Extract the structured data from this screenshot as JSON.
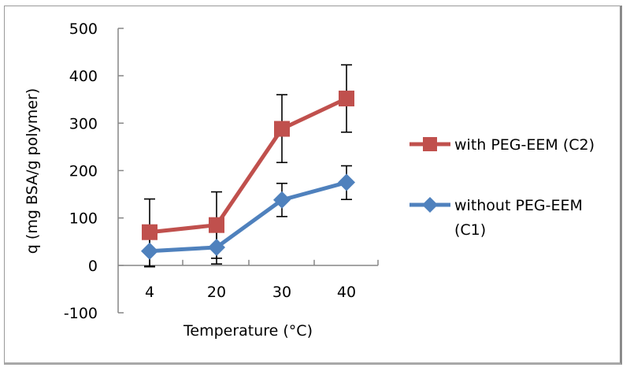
{
  "chart_data": {
    "type": "line",
    "title": "",
    "xlabel": "Temperature (°C)",
    "ylabel": "q (mg BSA/g polymer)",
    "categories": [
      "4",
      "20",
      "30",
      "40"
    ],
    "ylim": [
      -100,
      500
    ],
    "yticks": [
      -100,
      0,
      100,
      200,
      300,
      400,
      500
    ],
    "ytick_labels": [
      "-100",
      "0",
      "100",
      "200",
      "300",
      "400",
      "500"
    ],
    "grid": false,
    "legend_position": "right",
    "series": [
      {
        "name": "with PEG-EEM (C2)",
        "color": "#c0504d",
        "marker": "square",
        "values": [
          70,
          85,
          288,
          352
        ],
        "error_upper": [
          140,
          155,
          360,
          423
        ],
        "error_lower": [
          -2,
          15,
          217,
          281
        ]
      },
      {
        "name": "without PEG-EEM (C1)",
        "color": "#4f81bd",
        "marker": "diamond",
        "values": [
          30,
          38,
          138,
          175
        ],
        "error_upper": [
          63,
          72,
          173,
          210
        ],
        "error_lower": [
          -3,
          3,
          103,
          139
        ]
      }
    ]
  },
  "legend": {
    "items": [
      {
        "line1": "with PEG-EEM (C2)",
        "line2": ""
      },
      {
        "line1": "without PEG-EEM",
        "line2": "(C1)"
      }
    ]
  }
}
